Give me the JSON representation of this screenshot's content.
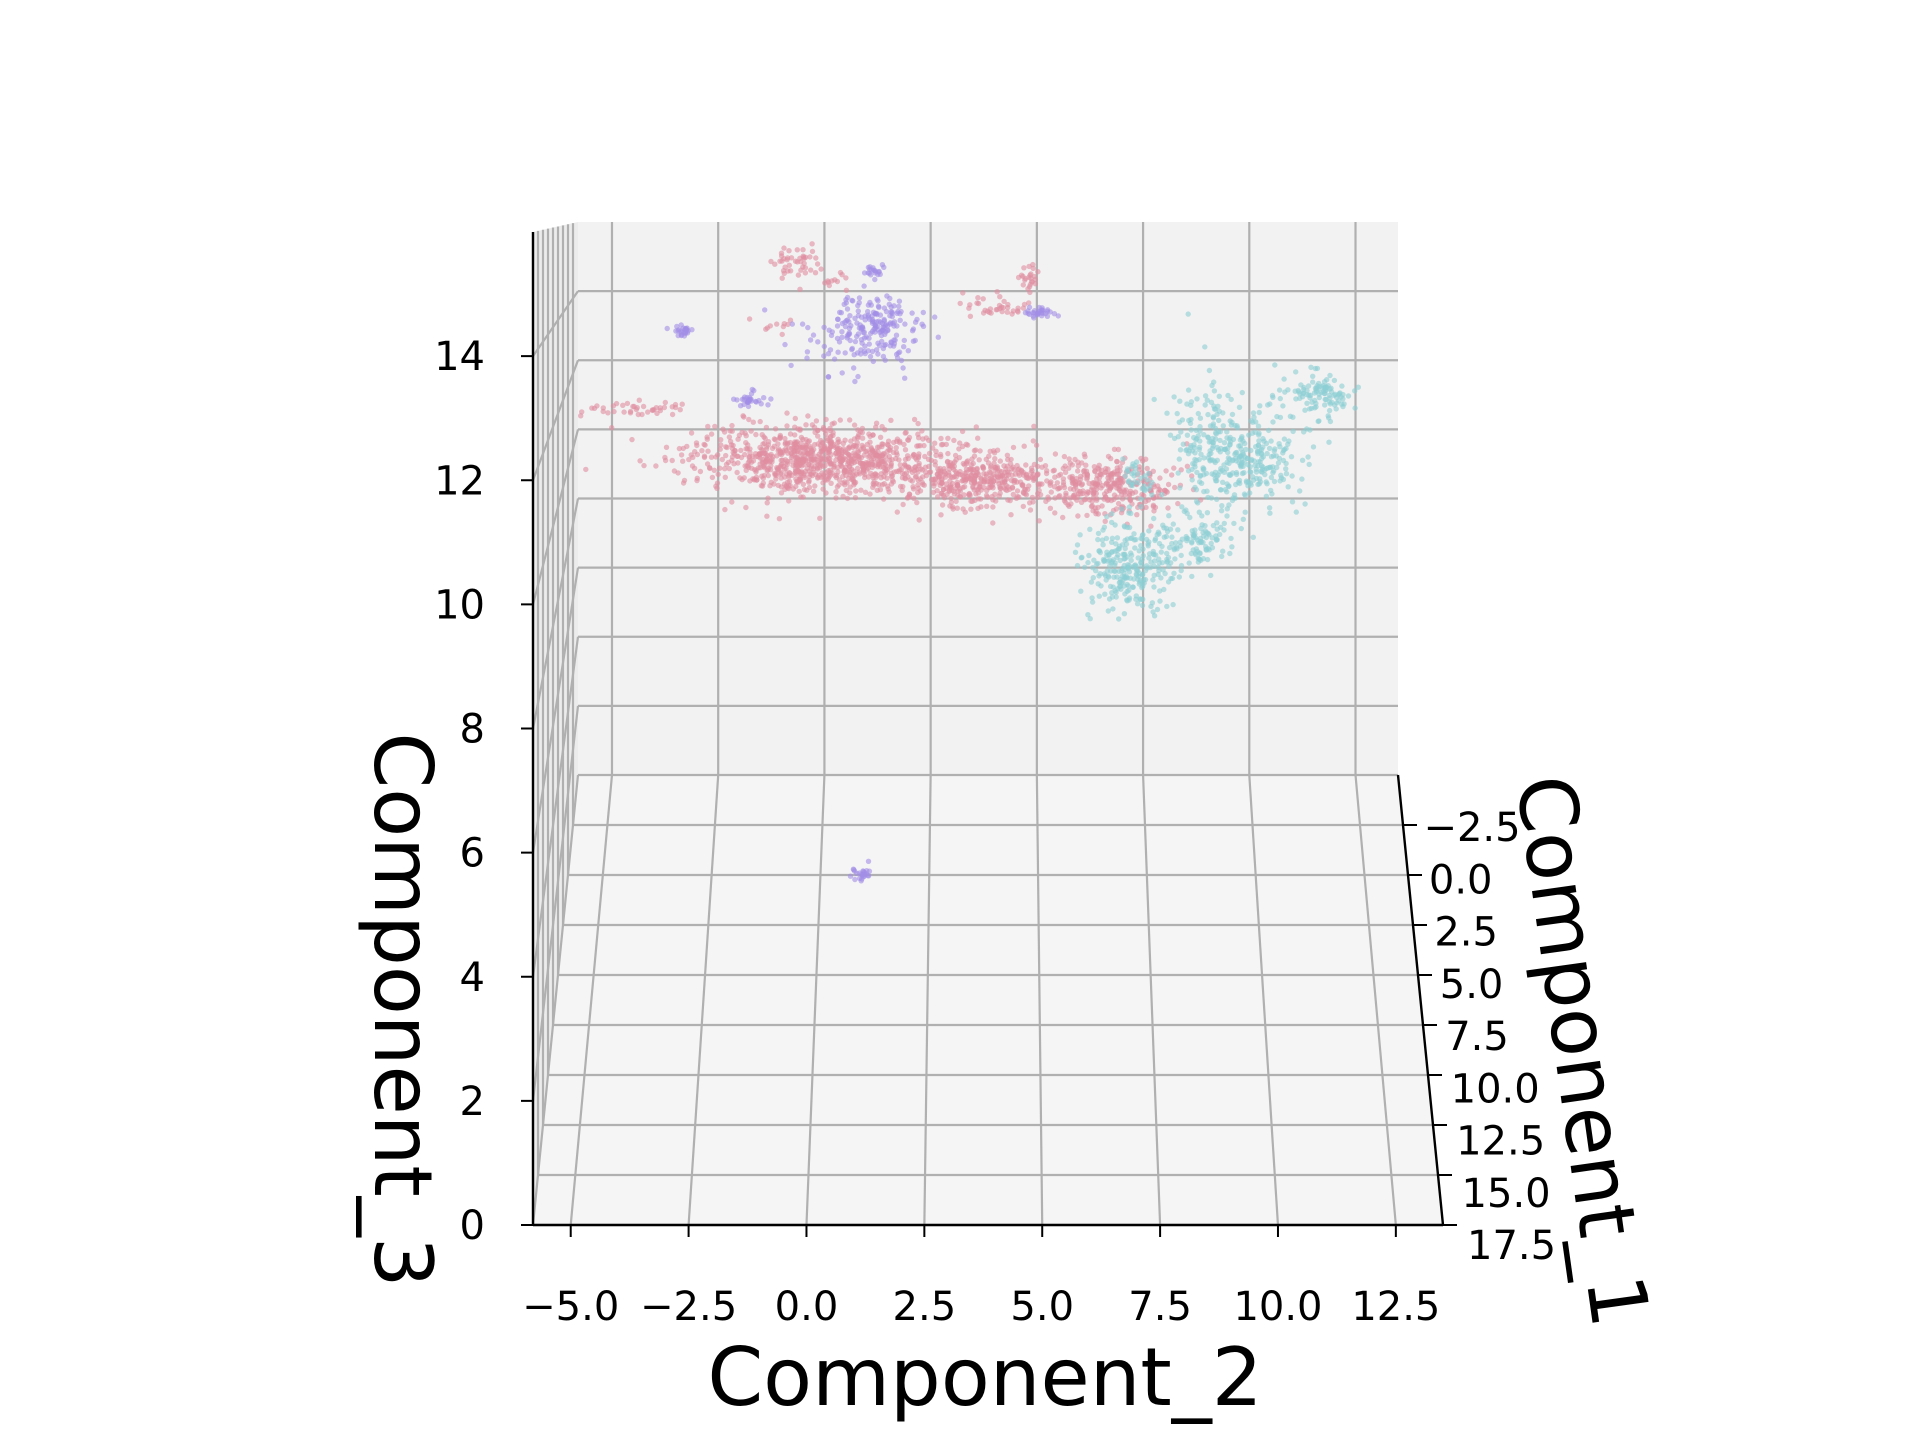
{
  "chart_data": {
    "type": "scatter",
    "projection": "3d",
    "title": "",
    "xlabel": "Component_2",
    "ylabel": "Component_1",
    "zlabel": "Component_3",
    "xticks": [
      "−5.0",
      "−2.5",
      "0.0",
      "2.5",
      "5.0",
      "7.5",
      "10.0",
      "12.5"
    ],
    "yticks": [
      "−2.5",
      "0.0",
      "2.5",
      "5.0",
      "7.5",
      "10.0",
      "12.5",
      "15.0",
      "17.5"
    ],
    "zticks": [
      "0",
      "2",
      "4",
      "6",
      "8",
      "10",
      "12",
      "14"
    ],
    "xlim": [
      -5.8,
      13.5
    ],
    "ylim": [
      -5.0,
      17.5
    ],
    "zlim": [
      0,
      16
    ],
    "grid": true,
    "legend": "none",
    "series": [
      {
        "color": "#e08da0",
        "clusters": [
          {
            "center": [
              0.0,
              5.0,
              11.0
            ],
            "spread": [
              2.5,
              2.0,
              0.6
            ],
            "count": 900
          },
          {
            "center": [
              3.5,
              5.0,
              10.6
            ],
            "spread": [
              1.6,
              1.2,
              0.5
            ],
            "count": 420
          },
          {
            "center": [
              6.5,
              6.0,
              10.6
            ],
            "spread": [
              1.4,
              2.0,
              0.5
            ],
            "count": 340
          },
          {
            "center": [
              -0.5,
              4.0,
              15.2
            ],
            "spread": [
              0.5,
              0.3,
              0.35
            ],
            "count": 45
          },
          {
            "center": [
              -4.0,
              6.0,
              12.2
            ],
            "spread": [
              1.2,
              0.3,
              0.15
            ],
            "count": 40
          },
          {
            "center": [
              4.0,
              4.0,
              14.2
            ],
            "spread": [
              0.8,
              0.3,
              0.25
            ],
            "count": 35
          },
          {
            "center": [
              4.8,
              4.0,
              14.8
            ],
            "spread": [
              0.2,
              0.3,
              0.3
            ],
            "count": 25
          },
          {
            "center": [
              0.4,
              4.0,
              14.8
            ],
            "spread": [
              0.2,
              0.3,
              0.2
            ],
            "count": 10
          },
          {
            "center": [
              -0.9,
              4.0,
              13.8
            ],
            "spread": [
              0.4,
              0.3,
              0.2
            ],
            "count": 10
          }
        ]
      },
      {
        "color": "#8ccfd3",
        "clusters": [
          {
            "center": [
              8.8,
              5.0,
              11.2
            ],
            "spread": [
              0.8,
              1.5,
              1.6
            ],
            "count": 170
          },
          {
            "center": [
              9.8,
              5.0,
              11.0
            ],
            "spread": [
              1.0,
              1.5,
              0.8
            ],
            "count": 220
          },
          {
            "center": [
              11.2,
              5.0,
              12.4
            ],
            "spread": [
              0.8,
              1.5,
              0.4
            ],
            "count": 110
          },
          {
            "center": [
              7.0,
              5.0,
              8.7
            ],
            "spread": [
              0.9,
              1.5,
              0.8
            ],
            "count": 260
          },
          {
            "center": [
              8.5,
              5.0,
              9.2
            ],
            "spread": [
              0.8,
              1.5,
              0.4
            ],
            "count": 100
          },
          {
            "center": [
              7.2,
              5.0,
              10.4
            ],
            "spread": [
              0.4,
              1.5,
              0.6
            ],
            "count": 40
          }
        ]
      },
      {
        "color": "#a28ee6",
        "clusters": [
          {
            "center": [
              1.0,
              4.0,
              13.6
            ],
            "spread": [
              1.2,
              0.3,
              0.7
            ],
            "count": 160
          },
          {
            "center": [
              1.4,
              4.0,
              14.0
            ],
            "spread": [
              0.8,
              0.3,
              0.35
            ],
            "count": 60
          },
          {
            "center": [
              -3.0,
              4.0,
              13.7
            ],
            "spread": [
              0.2,
              0.3,
              0.15
            ],
            "count": 25
          },
          {
            "center": [
              -1.5,
              4.0,
              12.2
            ],
            "spread": [
              0.3,
              0.3,
              0.15
            ],
            "count": 30
          },
          {
            "center": [
              1.3,
              4.0,
              15.0
            ],
            "spread": [
              0.2,
              0.3,
              0.12
            ],
            "count": 20
          },
          {
            "center": [
              5.0,
              4.0,
              14.1
            ],
            "spread": [
              0.3,
              0.3,
              0.15
            ],
            "count": 30
          },
          {
            "center": [
              1.0,
              4.0,
              1.8
            ],
            "spread": [
              0.15,
              0.3,
              0.12
            ],
            "count": 25
          }
        ]
      }
    ]
  }
}
